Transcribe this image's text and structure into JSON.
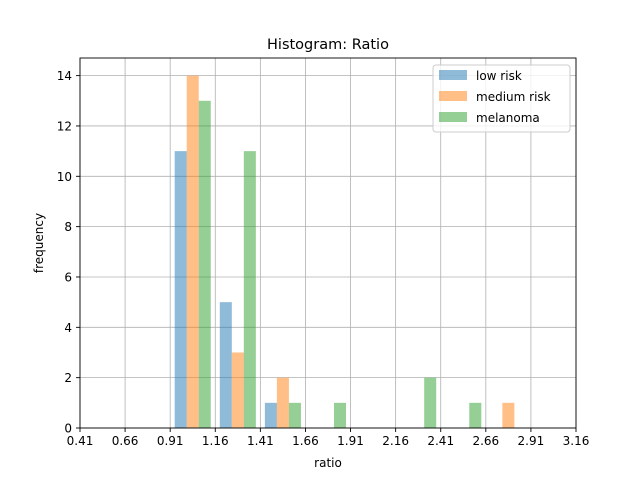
{
  "chart_data": {
    "type": "bar",
    "title": "Histogram: Ratio",
    "xlabel": "ratio",
    "ylabel": "frequency",
    "xlim": [
      0.41,
      3.16
    ],
    "ylim": [
      0,
      14.7
    ],
    "x_ticks": [
      "0.41",
      "0.66",
      "0.91",
      "1.16",
      "1.41",
      "1.66",
      "1.91",
      "2.16",
      "2.41",
      "2.66",
      "2.91",
      "3.16"
    ],
    "y_ticks": [
      "0",
      "2",
      "4",
      "6",
      "8",
      "10",
      "12",
      "14"
    ],
    "grid": true,
    "legend_position": "top-right",
    "bin_edges": [
      0.41,
      0.66,
      0.91,
      1.16,
      1.41,
      1.66,
      1.91,
      2.16,
      2.41,
      2.66,
      2.91,
      3.16
    ],
    "series": [
      {
        "name": "low risk",
        "color": "#1f77b4",
        "alpha": 0.5,
        "values": [
          0,
          0,
          11,
          5,
          1,
          0,
          0,
          0,
          0,
          0,
          0
        ]
      },
      {
        "name": "medium risk",
        "color": "#ff7f0e",
        "alpha": 0.5,
        "values": [
          0,
          0,
          14,
          3,
          2,
          0,
          0,
          0,
          0,
          1,
          0
        ]
      },
      {
        "name": "melanoma",
        "color": "#2ca02c",
        "alpha": 0.5,
        "values": [
          0,
          0,
          13,
          11,
          1,
          1,
          0,
          2,
          1,
          0,
          0
        ]
      }
    ]
  }
}
